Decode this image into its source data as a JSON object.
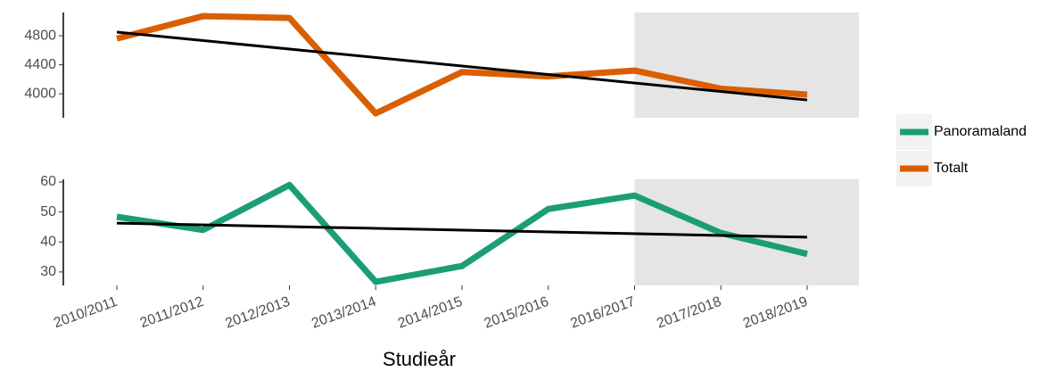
{
  "chart_data": [
    {
      "type": "line",
      "series": [
        {
          "name": "Totalt",
          "color": "#d95f02",
          "values": [
            4760,
            5070,
            5045,
            3730,
            4300,
            4240,
            4320,
            4070,
            3990
          ]
        }
      ],
      "trend": {
        "color": "#000000",
        "values": [
          4850,
          3915
        ]
      },
      "ylim": [
        3670,
        5120
      ],
      "yticks": [
        4000,
        4400,
        4800
      ],
      "highlight": {
        "from": 6,
        "color": "#e5e5e5"
      }
    },
    {
      "type": "line",
      "x_label": "Studieår",
      "categories": [
        "2010/2011",
        "2011/2012",
        "2012/2013",
        "2013/2014",
        "2014/2015",
        "2015/2016",
        "2016/2017",
        "2017/2018",
        "2018/2019"
      ],
      "series": [
        {
          "name": "Panoramaland",
          "color": "#1b9e77",
          "values": [
            48.4,
            44,
            59,
            26.7,
            32,
            51,
            55.5,
            43,
            36
          ]
        }
      ],
      "trend": {
        "color": "#000000",
        "values": [
          46.3,
          41.6
        ]
      },
      "ylim": [
        25.5,
        60.9
      ],
      "yticks": [
        30,
        40,
        50,
        60
      ],
      "highlight": {
        "from": 6,
        "color": "#e5e5e5"
      }
    }
  ]
}
